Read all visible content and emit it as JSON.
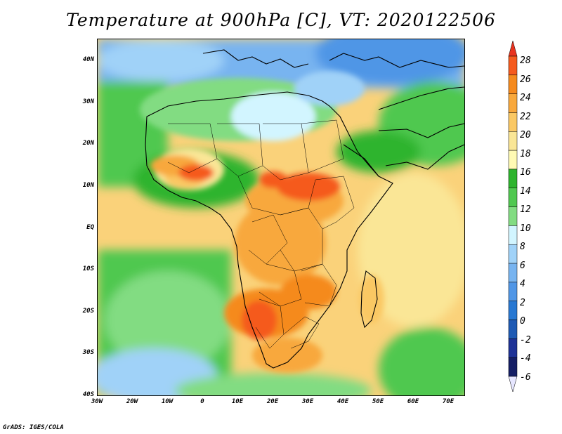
{
  "title": "Temperature at 900hPa [C], VT: 2020122506",
  "credit": "GrADS: IGES/COLA",
  "lat_labels": [
    "40N",
    "30N",
    "20N",
    "10N",
    "EQ",
    "10S",
    "20S",
    "30S",
    "40S"
  ],
  "lon_labels": [
    "30W",
    "20W",
    "10W",
    "0",
    "10E",
    "20E",
    "30E",
    "40E",
    "50E",
    "60E",
    "70E"
  ],
  "colorbar": {
    "labels": [
      "28",
      "26",
      "24",
      "22",
      "20",
      "18",
      "16",
      "14",
      "12",
      "10",
      "8",
      "6",
      "4",
      "2",
      "0",
      "-2",
      "-4",
      "-6"
    ],
    "colors": [
      "#e8321e",
      "#f55a1e",
      "#f58a1e",
      "#f8a83c",
      "#fac864",
      "#fae696",
      "#fffab4",
      "#2db42d",
      "#50c850",
      "#82dc82",
      "#d2f5ff",
      "#a0d2f8",
      "#78b4f0",
      "#5096e6",
      "#2878d2",
      "#1e5ab4",
      "#1e3296",
      "#141e64",
      "#e6e6ff"
    ]
  }
}
